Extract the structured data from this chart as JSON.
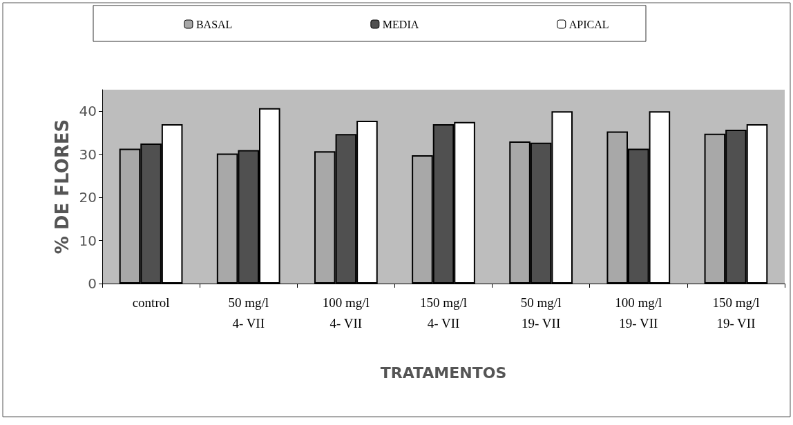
{
  "chart_data": {
    "type": "bar",
    "xlabel": "TRATAMENTOS",
    "ylabel": "% DE FLORES",
    "categories": [
      "control",
      "50 mg/l\n4- VII",
      "100 mg/l\n4- VII",
      "150 mg/l\n4- VII",
      "50 mg/l\n19- VII",
      "100 mg/l\n19- VII",
      "150 mg/l\n19- VII"
    ],
    "series": [
      {
        "name": "BASAL",
        "color": "#a8a8a8",
        "values": [
          31.3,
          30.2,
          30.7,
          29.8,
          33,
          35.3,
          34.8
        ]
      },
      {
        "name": "MEDIA",
        "color": "#505050",
        "values": [
          32.5,
          31,
          34.7,
          37,
          32.7,
          31.3,
          35.7
        ]
      },
      {
        "name": "APICAL",
        "color": "#ffffff",
        "values": [
          37,
          40.7,
          37.8,
          37.5,
          40,
          40,
          37
        ]
      }
    ],
    "ylim": [
      0,
      45
    ],
    "yticks": [
      0,
      10,
      20,
      30,
      40
    ],
    "grid": false,
    "legend": "top"
  }
}
